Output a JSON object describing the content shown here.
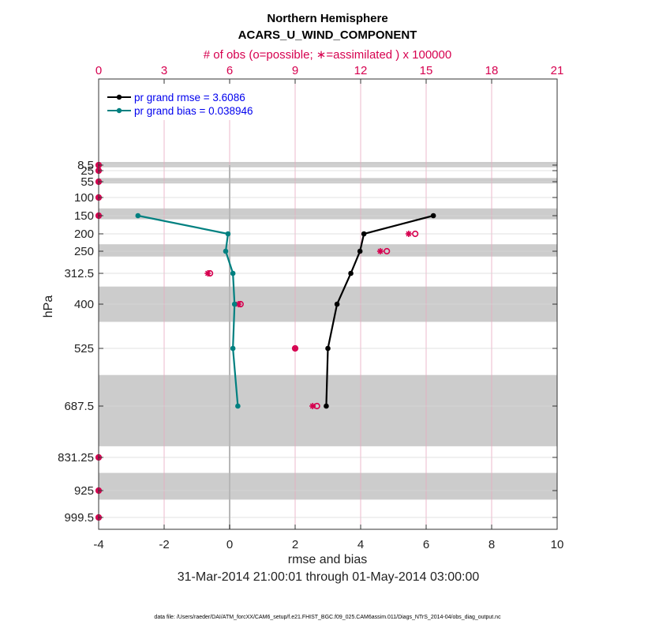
{
  "chart_data": {
    "type": "line",
    "title": "Northern Hemisphere",
    "subtitle": "ACARS_U_WIND_COMPONENT",
    "top_axis_label": "# of obs (o=possible; ∗=assimilated ) x 100000",
    "xlabel": "rmse and bias",
    "ylabel": "hPa",
    "date_range": "31-Mar-2014 21:00:01 through 01-May-2014 03:00:00",
    "footer": "data file: /Users/raeder/DAI/ATM_forcXX/CAM6_setup/f.e21.FHIST_BGC.f09_025.CAM6assim.011/Diags_NTrS_2014-04/obs_diag_output.nc",
    "xlim": [
      -4,
      10
    ],
    "xticks": [
      "-4",
      "-2",
      "0",
      "2",
      "4",
      "6",
      "8",
      "10"
    ],
    "top_xlim": [
      0,
      21
    ],
    "top_xticks": [
      "0",
      "3",
      "6",
      "9",
      "12",
      "15",
      "18",
      "21"
    ],
    "levels": [
      8.5,
      25,
      55,
      100,
      150,
      200,
      250,
      312.5,
      400,
      525,
      687.5,
      831.25,
      925,
      999.5
    ],
    "level_labels": [
      "8.5",
      "25",
      "55",
      "100",
      "150",
      "200",
      "250",
      "312.5",
      "400",
      "525",
      "687.5",
      "831.25",
      "925",
      "999.5"
    ],
    "legend_position": "top-left",
    "series": [
      {
        "name": "pr grand rmse = 3.6086",
        "color": "#000000",
        "levels": [
          150,
          200,
          250,
          312.5,
          400,
          525,
          687.5
        ],
        "values": [
          6.22,
          4.1,
          3.98,
          3.7,
          3.28,
          3.0,
          2.95
        ]
      },
      {
        "name": "pr grand bias = 0.038946",
        "color": "#008080",
        "levels": [
          150,
          200,
          250,
          312.5,
          400,
          525,
          687.5
        ],
        "values": [
          -2.8,
          -0.05,
          -0.12,
          0.1,
          0.15,
          0.1,
          0.25
        ]
      }
    ],
    "obs_possible": {
      "levels": [
        8.5,
        25,
        55,
        100,
        150,
        200,
        250,
        312.5,
        400,
        525,
        687.5,
        831.25,
        925,
        999.5
      ],
      "values": [
        0,
        0,
        0,
        0,
        0,
        14.5,
        13.2,
        5.1,
        6.5,
        9.0,
        10.0,
        0,
        0,
        0
      ]
    },
    "obs_assimilated": {
      "levels": [
        8.5,
        25,
        55,
        100,
        150,
        200,
        250,
        312.5,
        400,
        525,
        687.5,
        831.25,
        925,
        999.5
      ],
      "values": [
        0,
        0,
        0,
        0,
        0,
        14.2,
        12.9,
        5.0,
        6.4,
        9.0,
        9.8,
        0,
        0,
        0
      ]
    },
    "shaded_bands": [
      [
        0,
        15
      ],
      [
        45,
        60
      ],
      [
        130,
        160
      ],
      [
        230,
        265
      ],
      [
        350,
        450
      ],
      [
        600,
        800
      ],
      [
        875,
        950
      ]
    ]
  }
}
